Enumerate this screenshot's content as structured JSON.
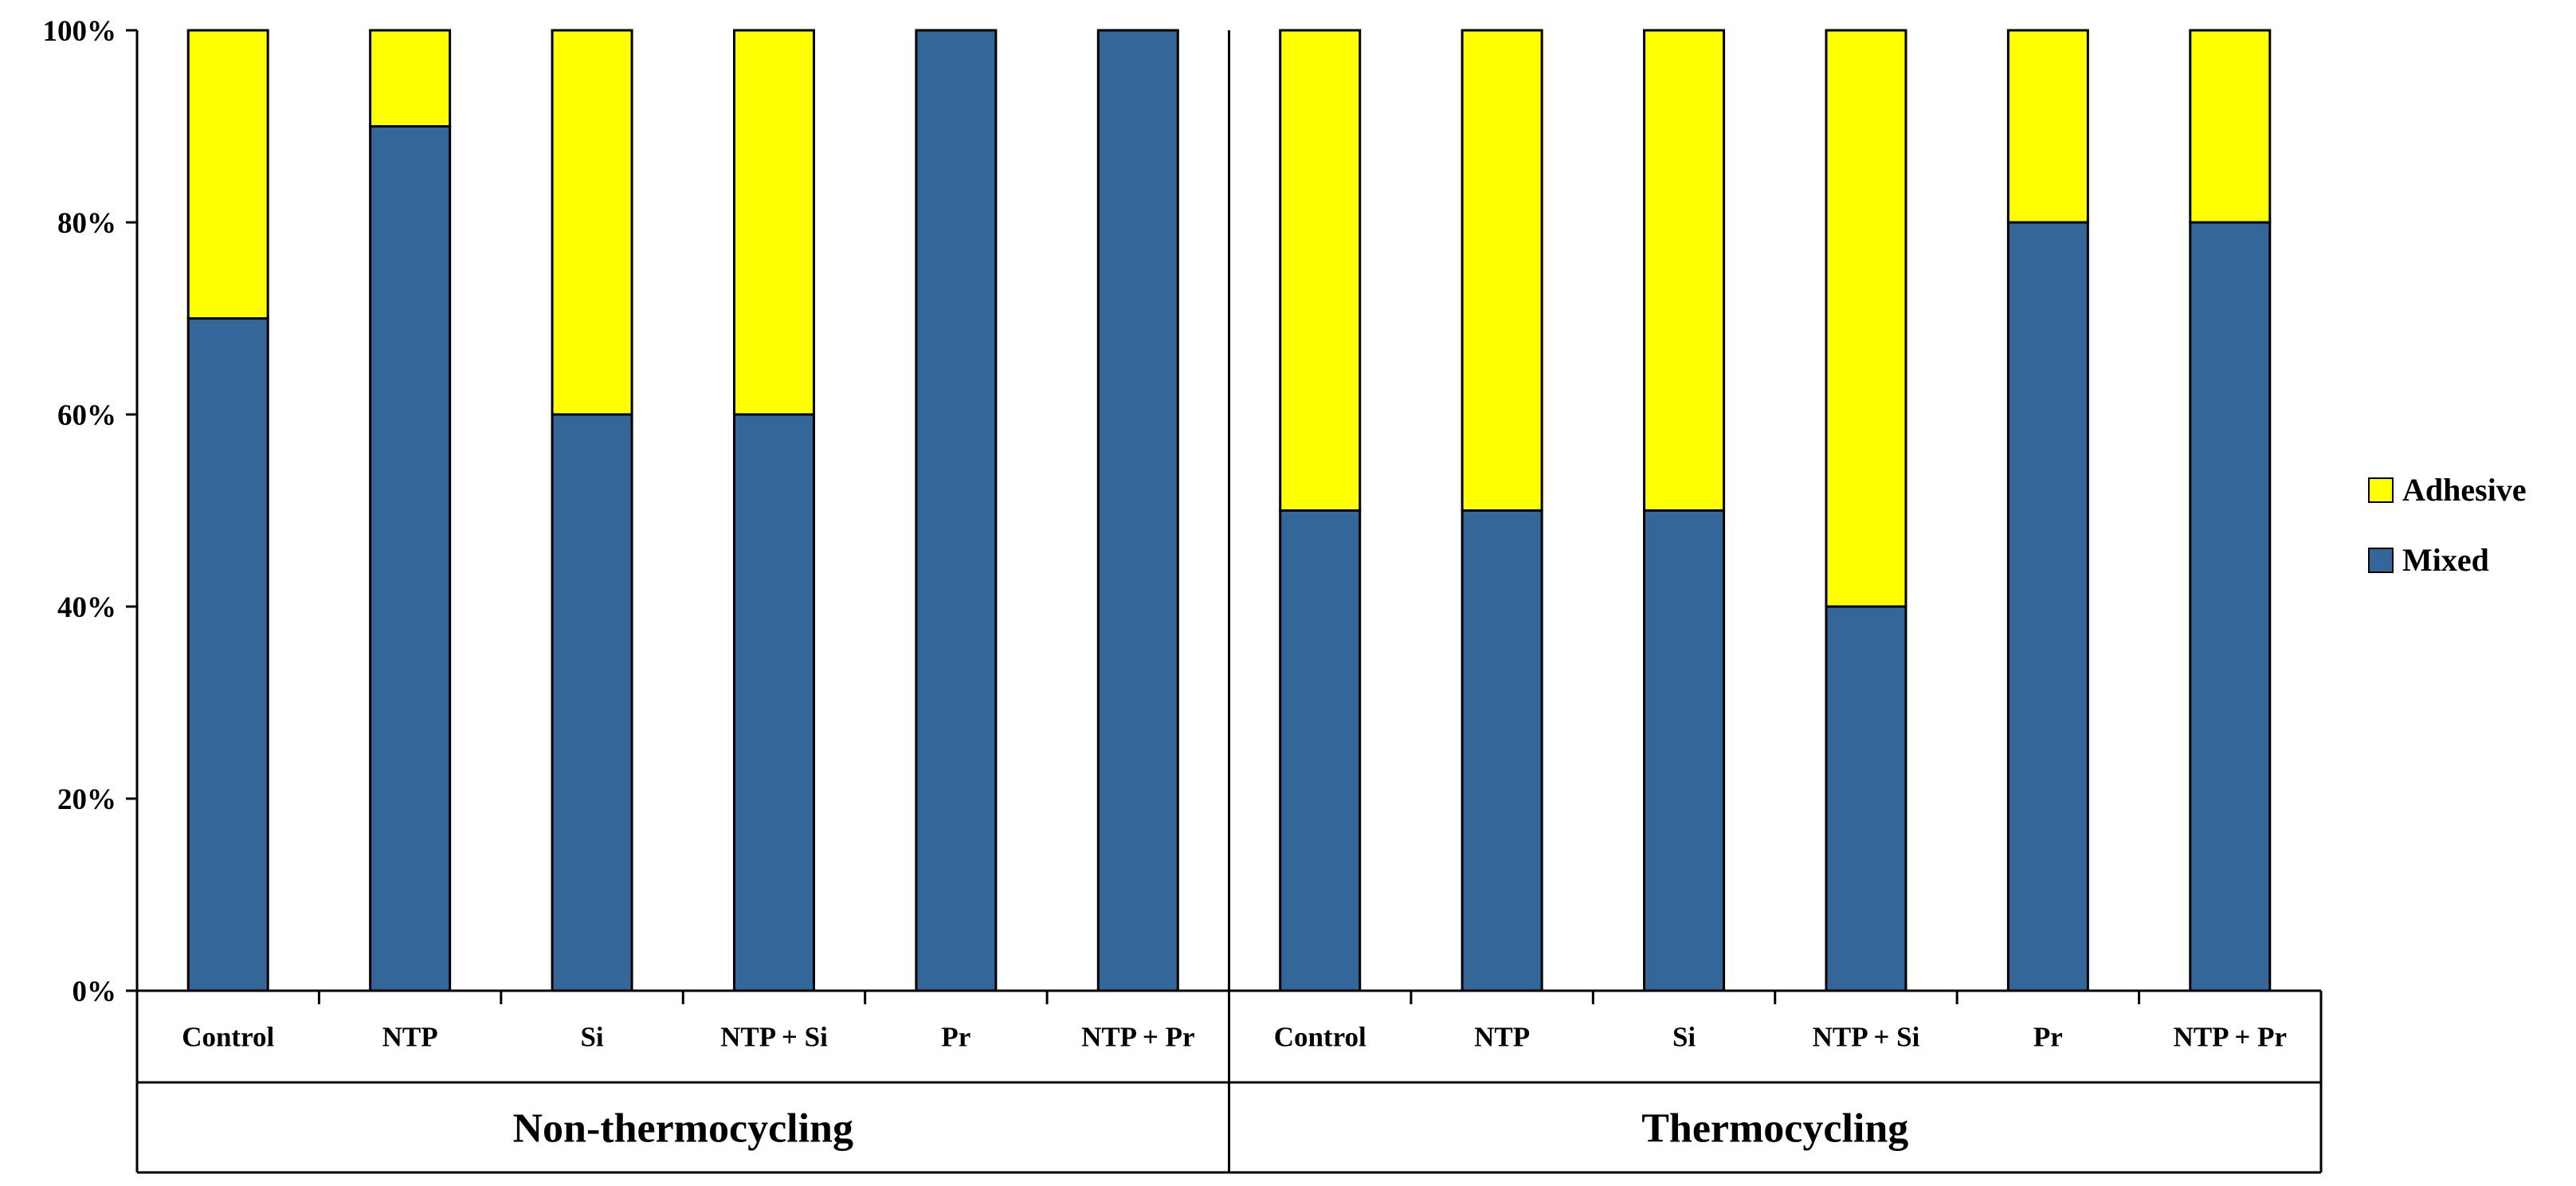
{
  "chart_data": {
    "type": "bar",
    "stacked": true,
    "title": "",
    "xlabel": "",
    "ylabel": "",
    "ylim": [
      0,
      100
    ],
    "y_ticks": [
      "0%",
      "20%",
      "40%",
      "60%",
      "80%",
      "100%"
    ],
    "groups": [
      {
        "label": "Non-thermocycling",
        "categories": [
          "Control",
          "NTP",
          "Si",
          "NTP + Si",
          "Pr",
          "NTP + Pr"
        ]
      },
      {
        "label": "Thermocycling",
        "categories": [
          "Control",
          "NTP",
          "Si",
          "NTP + Si",
          "Pr",
          "NTP + Pr"
        ]
      }
    ],
    "categories": [
      "Control",
      "NTP",
      "Si",
      "NTP + Si",
      "Pr",
      "NTP + Pr",
      "Control",
      "NTP",
      "Si",
      "NTP + Si",
      "Pr",
      "NTP + Pr"
    ],
    "series": [
      {
        "name": "Mixed",
        "color": "#336699",
        "values": [
          70,
          90,
          60,
          60,
          100,
          100,
          50,
          50,
          50,
          40,
          80,
          80
        ]
      },
      {
        "name": "Adhesive",
        "color": "#FFFF00",
        "values": [
          30,
          10,
          40,
          40,
          0,
          0,
          50,
          50,
          50,
          60,
          20,
          20
        ]
      }
    ],
    "legend": {
      "position": "right",
      "entries": [
        "Adhesive",
        "Mixed"
      ]
    }
  }
}
